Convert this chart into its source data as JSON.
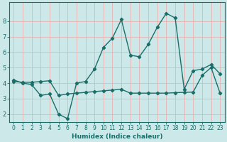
{
  "xlabel": "Humidex (Indice chaleur)",
  "bg_color": "#cce8e8",
  "grid_color": "#e8b0b0",
  "line_color": "#1a6e6a",
  "spine_color": "#1a6e6a",
  "xlim": [
    -0.5,
    23.5
  ],
  "ylim": [
    1.5,
    9.2
  ],
  "yticks": [
    2,
    3,
    4,
    5,
    6,
    7,
    8
  ],
  "xticks": [
    0,
    1,
    2,
    3,
    4,
    5,
    6,
    7,
    8,
    9,
    10,
    11,
    12,
    13,
    14,
    15,
    16,
    17,
    18,
    19,
    20,
    21,
    22,
    23
  ],
  "line1_x": [
    0,
    1,
    2,
    3,
    4,
    5,
    6,
    7,
    8,
    9,
    10,
    11,
    12,
    13,
    14,
    15,
    16,
    17,
    18,
    19,
    20,
    21,
    22,
    23
  ],
  "line1_y": [
    4.2,
    4.0,
    3.9,
    3.2,
    3.3,
    2.0,
    1.7,
    4.0,
    4.1,
    4.9,
    6.3,
    6.9,
    8.1,
    5.8,
    5.7,
    6.5,
    7.6,
    8.5,
    8.2,
    3.6,
    4.8,
    4.9,
    5.2,
    4.6
  ],
  "line2_x": [
    0,
    1,
    2,
    3,
    4,
    5,
    6,
    7,
    8,
    9,
    10,
    11,
    12,
    13,
    14,
    15,
    16,
    17,
    18,
    19,
    20,
    21,
    22,
    23
  ],
  "line2_y": [
    4.1,
    4.05,
    4.05,
    4.1,
    4.15,
    3.2,
    3.3,
    3.35,
    3.4,
    3.45,
    3.5,
    3.55,
    3.6,
    3.35,
    3.35,
    3.35,
    3.35,
    3.35,
    3.38,
    3.4,
    3.42,
    4.5,
    5.0,
    3.35
  ],
  "tick_fontsize": 5.5,
  "xlabel_fontsize": 6.5,
  "marker_size": 2.2,
  "line_width": 1.0
}
